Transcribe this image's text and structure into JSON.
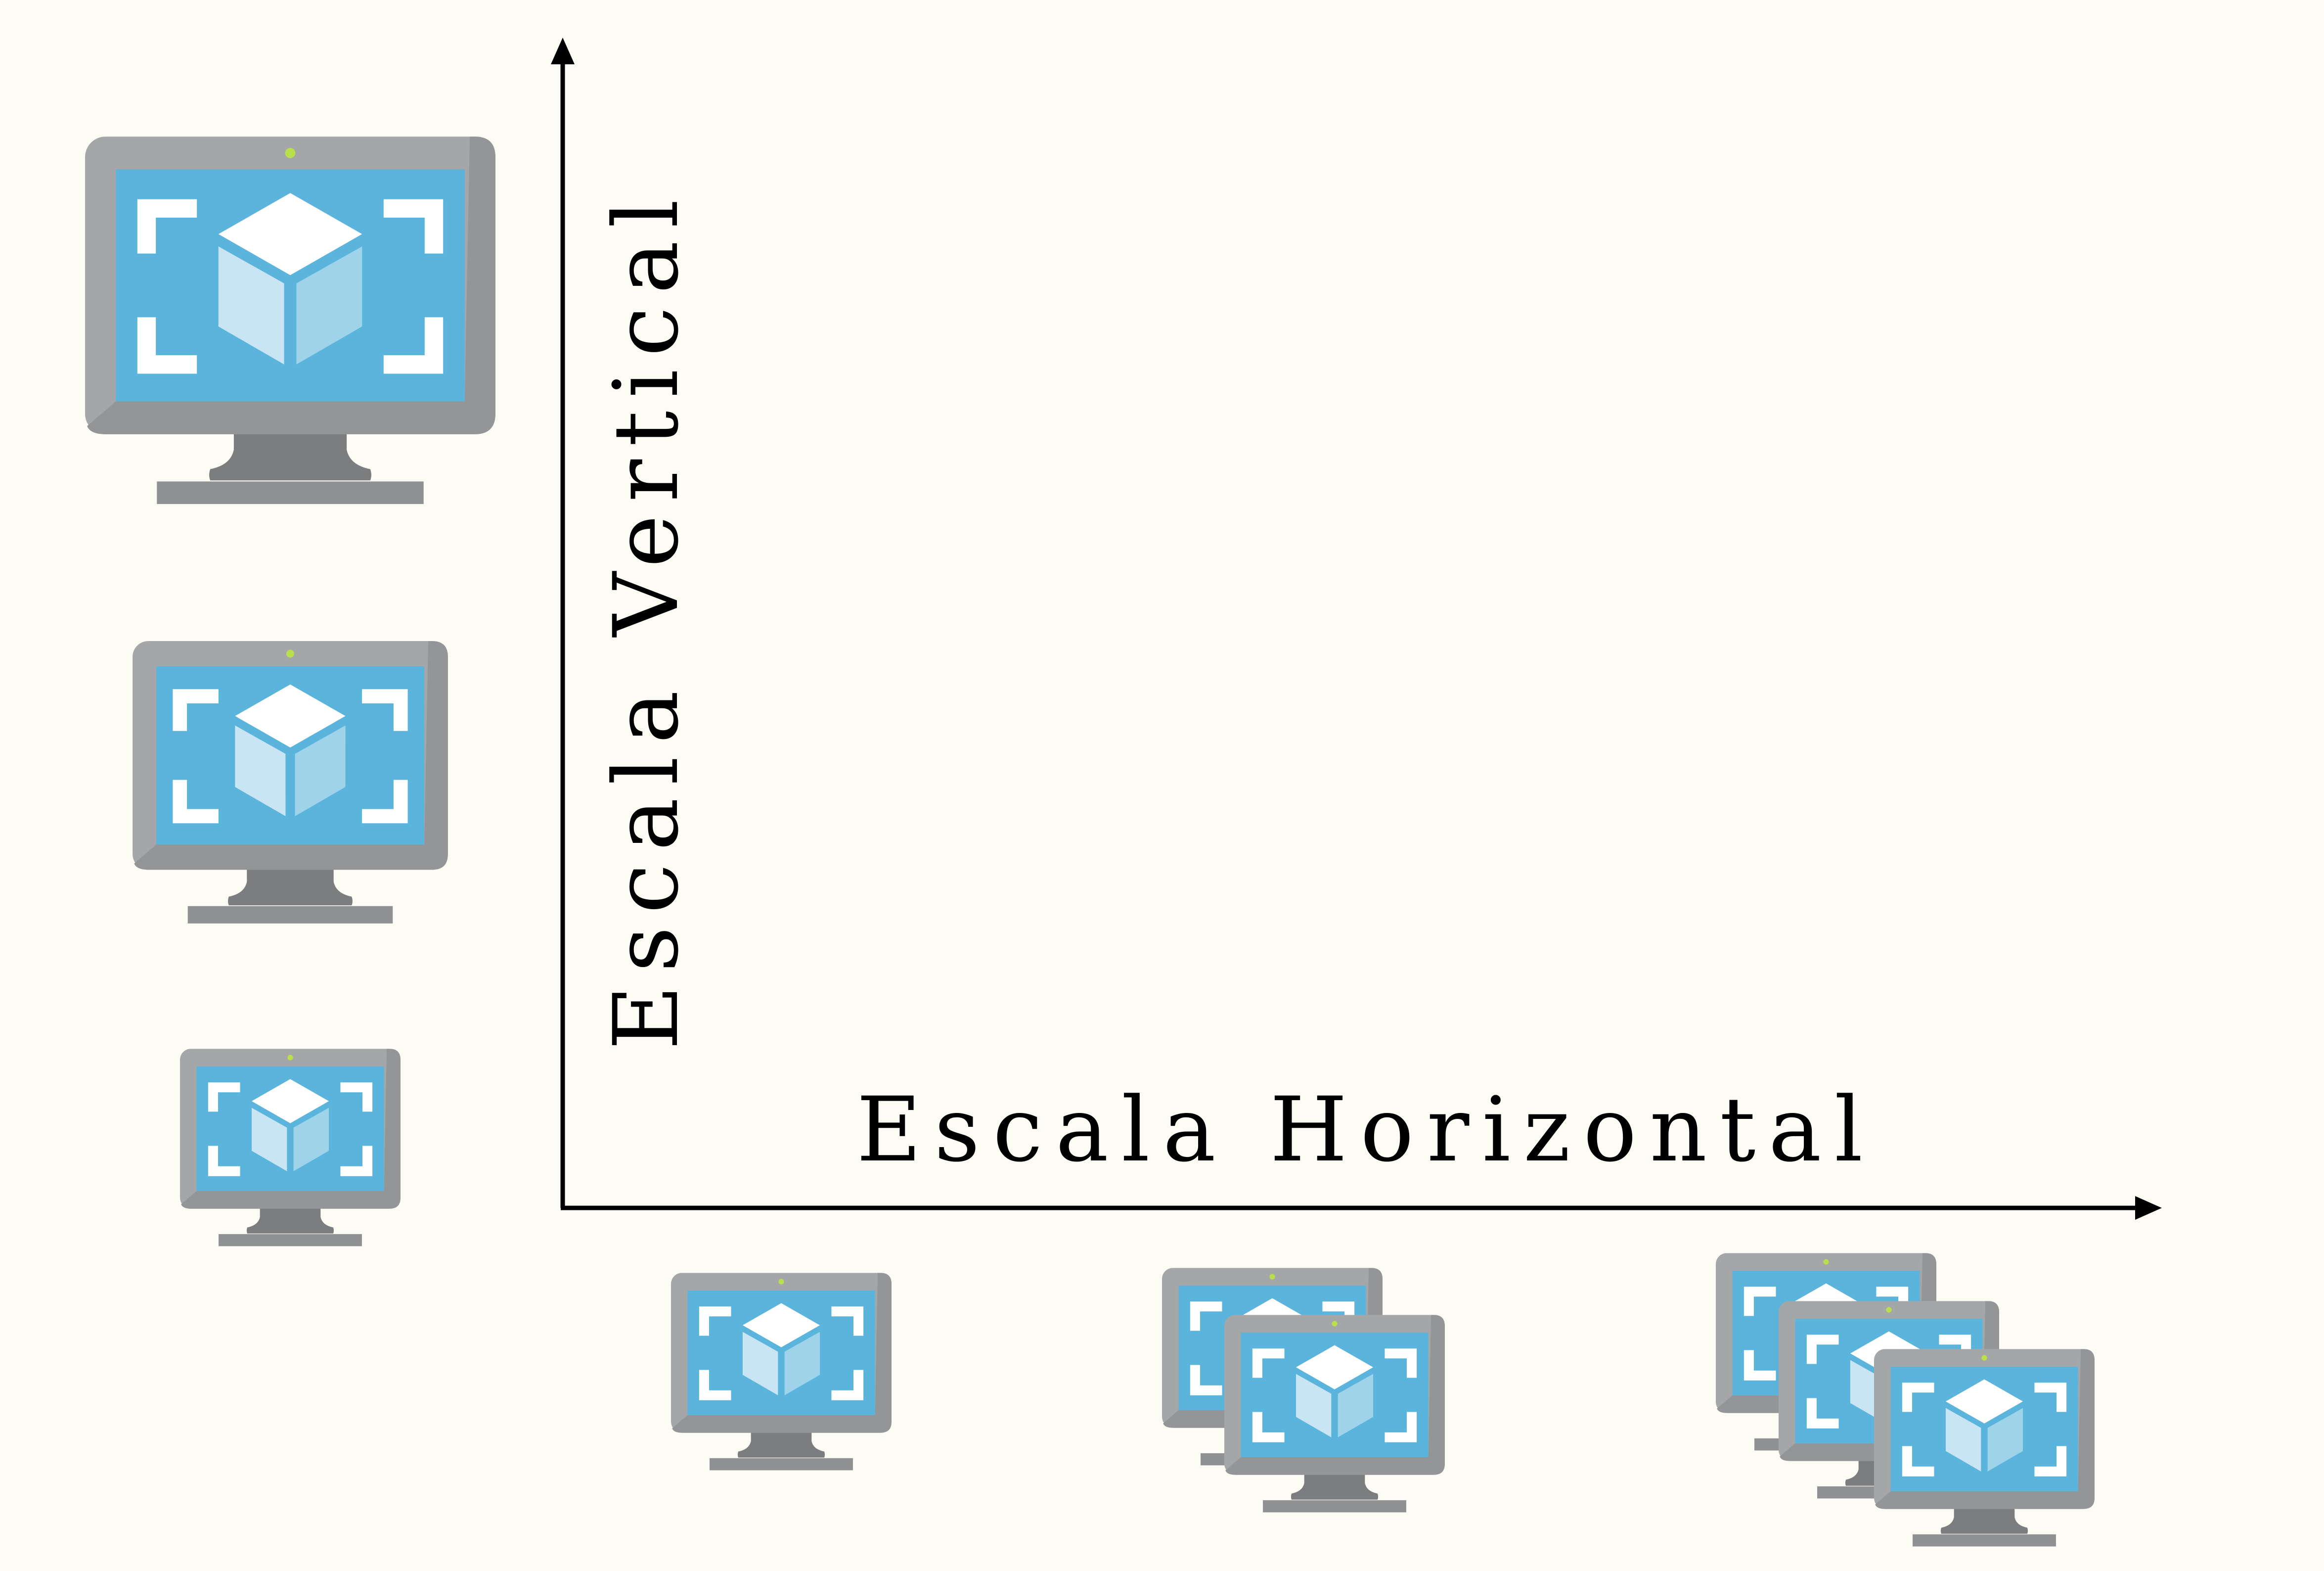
{
  "labels": {
    "vertical": "Escala Vertical",
    "horizontal": "Escala Horizontal"
  },
  "colors": {
    "background": "#fdfcf4",
    "axis": "#000000",
    "monitor_frame": "#a5a6a8",
    "monitor_stand": "#7c7d7f",
    "screen": "#5ab4dc",
    "cube_top": "#ffffff",
    "cube_left": "#c9e5f4",
    "cube_right": "#9ed3ea",
    "power_led": "#b9e04a"
  },
  "icons": {
    "vertical_group": [
      "virtual-machine-icon",
      "virtual-machine-icon",
      "virtual-machine-icon"
    ],
    "horizontal_groups": [
      {
        "count": 1,
        "icon": "virtual-machine-icon"
      },
      {
        "count": 2,
        "icon": "virtual-machine-icon"
      },
      {
        "count": 3,
        "icon": "virtual-machine-icon"
      }
    ]
  }
}
